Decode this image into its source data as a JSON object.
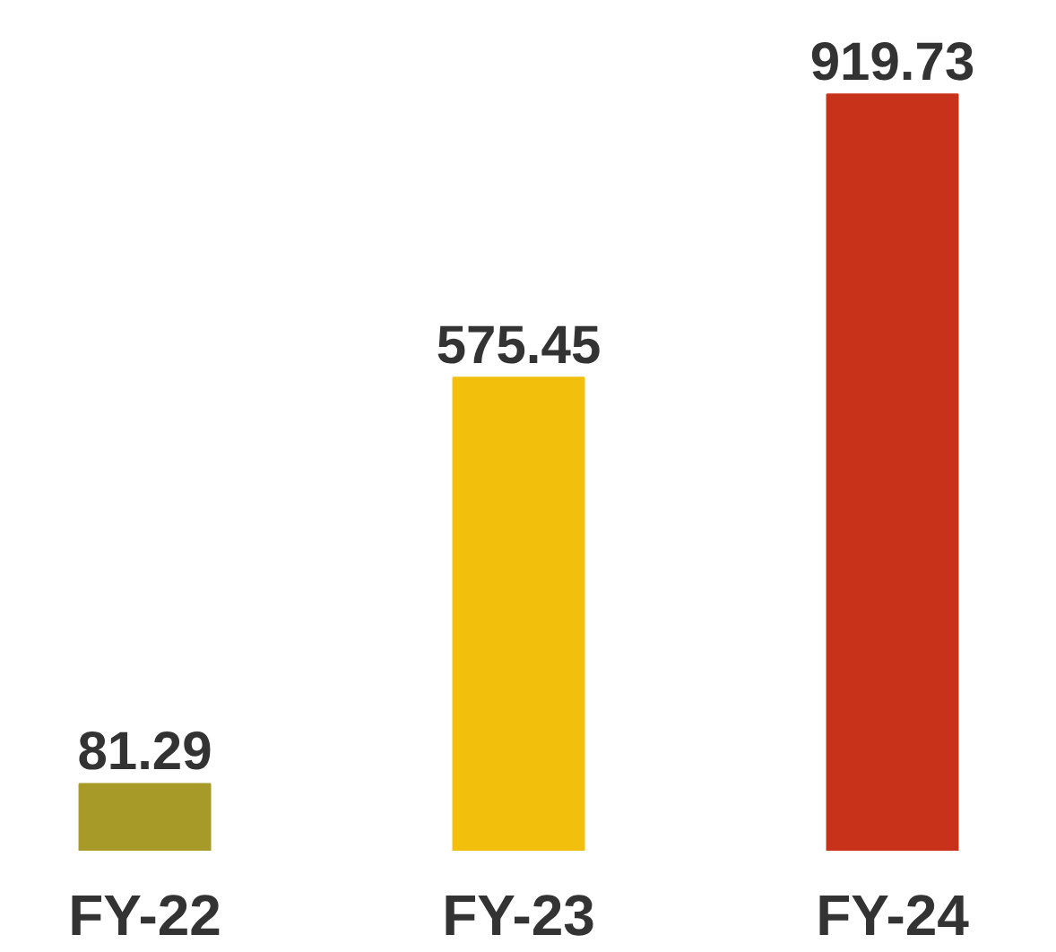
{
  "chart_data": {
    "type": "bar",
    "categories": [
      "FY-22",
      "FY-23",
      "FY-24"
    ],
    "values": [
      81.29,
      575.45,
      919.73
    ],
    "colors": [
      "#a89a28",
      "#f2c00c",
      "#c8321a"
    ],
    "data_labels": true,
    "grid": false
  }
}
